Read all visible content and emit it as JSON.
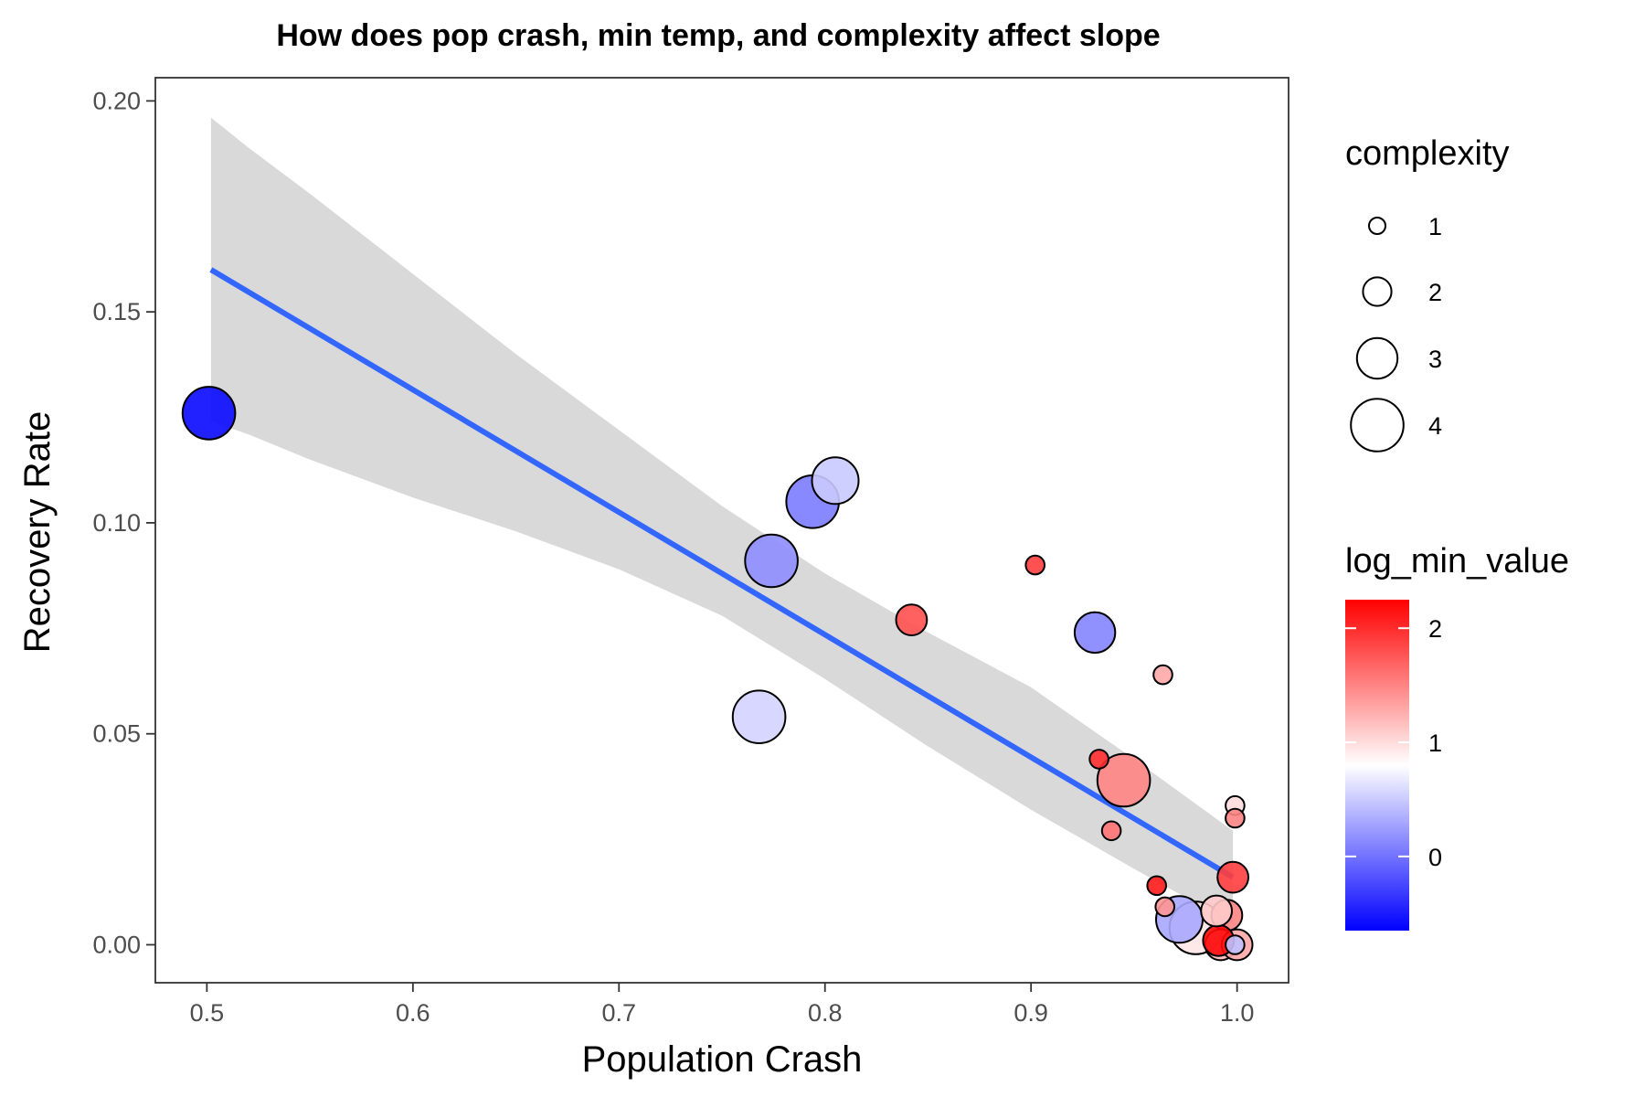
{
  "chart_data": {
    "type": "scatter",
    "title": "How does pop crash, min temp, and complexity affect slope",
    "xlabel": "Population Crash",
    "ylabel": "Recovery Rate",
    "xlim": [
      0.475,
      1.025
    ],
    "ylim": [
      -0.009,
      0.2055
    ],
    "xticks": [
      0.5,
      0.6,
      0.7,
      0.8,
      0.9,
      1.0
    ],
    "xtick_labels": [
      "0.5",
      "0.6",
      "0.7",
      "0.8",
      "0.9",
      "1.0"
    ],
    "yticks": [
      0.0,
      0.05,
      0.1,
      0.15,
      0.2
    ],
    "ytick_labels": [
      "0.00",
      "0.05",
      "0.10",
      "0.15",
      "0.20"
    ],
    "grid": false,
    "points": [
      {
        "x": 0.501,
        "y": 0.126,
        "complexity": 4,
        "log_min_value": -0.6
      },
      {
        "x": 0.805,
        "y": 0.11,
        "complexity": 3.5,
        "log_min_value": 0.5
      },
      {
        "x": 0.794,
        "y": 0.105,
        "complexity": 4,
        "log_min_value": 0.05
      },
      {
        "x": 0.774,
        "y": 0.091,
        "complexity": 4,
        "log_min_value": 0.15
      },
      {
        "x": 0.768,
        "y": 0.054,
        "complexity": 4,
        "log_min_value": 0.55
      },
      {
        "x": 0.902,
        "y": 0.09,
        "complexity": 1.2,
        "log_min_value": 1.9
      },
      {
        "x": 0.842,
        "y": 0.077,
        "complexity": 2.2,
        "log_min_value": 1.8
      },
      {
        "x": 0.931,
        "y": 0.074,
        "complexity": 3,
        "log_min_value": 0.1
      },
      {
        "x": 0.964,
        "y": 0.064,
        "complexity": 1.2,
        "log_min_value": 1.3
      },
      {
        "x": 0.933,
        "y": 0.044,
        "complexity": 1.2,
        "log_min_value": 2.0
      },
      {
        "x": 0.945,
        "y": 0.039,
        "complexity": 4,
        "log_min_value": 1.5
      },
      {
        "x": 0.939,
        "y": 0.027,
        "complexity": 1.2,
        "log_min_value": 1.6
      },
      {
        "x": 0.999,
        "y": 0.033,
        "complexity": 1.2,
        "log_min_value": 1.0
      },
      {
        "x": 0.999,
        "y": 0.03,
        "complexity": 1.2,
        "log_min_value": 1.5
      },
      {
        "x": 0.998,
        "y": 0.016,
        "complexity": 2.2,
        "log_min_value": 1.9
      },
      {
        "x": 0.961,
        "y": 0.014,
        "complexity": 1.2,
        "log_min_value": 2.1
      },
      {
        "x": 0.965,
        "y": 0.009,
        "complexity": 1.2,
        "log_min_value": 1.4
      },
      {
        "x": 0.972,
        "y": 0.006,
        "complexity": 3.5,
        "log_min_value": 0.3
      },
      {
        "x": 0.98,
        "y": 0.004,
        "complexity": 4,
        "log_min_value": 0.95
      },
      {
        "x": 0.995,
        "y": 0.007,
        "complexity": 2.2,
        "log_min_value": 1.5
      },
      {
        "x": 0.992,
        "y": 0.0,
        "complexity": 2.2,
        "log_min_value": 1.2
      },
      {
        "x": 1.0,
        "y": 0.0,
        "complexity": 2.2,
        "log_min_value": 1.3
      },
      {
        "x": 0.991,
        "y": 0.001,
        "complexity": 2.2,
        "log_min_value": 2.2
      },
      {
        "x": 0.999,
        "y": 0.0,
        "complexity": 1.2,
        "log_min_value": 0.45
      },
      {
        "x": 0.99,
        "y": 0.008,
        "complexity": 2.2,
        "log_min_value": 1.1
      }
    ],
    "trend": {
      "x": [
        0.502,
        0.998
      ],
      "y": [
        0.16,
        0.016
      ],
      "color": "#3366ff"
    },
    "confidence_band": {
      "x": [
        0.502,
        0.52,
        0.55,
        0.6,
        0.65,
        0.7,
        0.75,
        0.8,
        0.85,
        0.9,
        0.95,
        0.998
      ],
      "lower": [
        0.124,
        0.121,
        0.115,
        0.106,
        0.098,
        0.089,
        0.078,
        0.063,
        0.047,
        0.032,
        0.018,
        0.005
      ],
      "upper": [
        0.196,
        0.189,
        0.178,
        0.159,
        0.14,
        0.122,
        0.104,
        0.088,
        0.074,
        0.061,
        0.044,
        0.027
      ],
      "color": "#d9d9d9"
    },
    "legend": {
      "position": "right",
      "size_title": "complexity",
      "size_entries": [
        {
          "label": "1",
          "value": 1
        },
        {
          "label": "2",
          "value": 2
        },
        {
          "label": "3",
          "value": 3
        },
        {
          "label": "4",
          "value": 4
        }
      ],
      "color_title": "log_min_value",
      "color_range": [
        -0.65,
        2.25
      ],
      "color_ticks": [
        {
          "label": "2",
          "value": 2
        },
        {
          "label": "1",
          "value": 1
        },
        {
          "label": "0",
          "value": 0
        }
      ],
      "color_low": "#0000ff",
      "color_mid": "#ffffff",
      "color_high": "#ff0000",
      "color_midpoint": 0.8
    }
  }
}
